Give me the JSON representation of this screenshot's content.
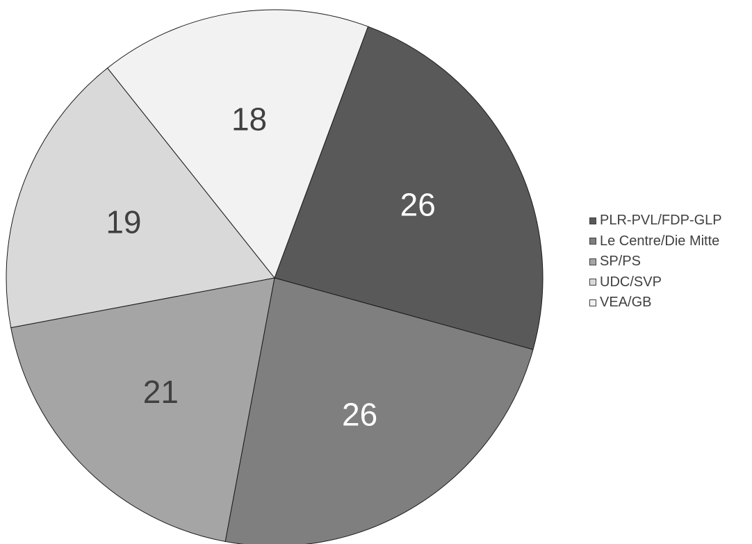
{
  "chart_data": {
    "type": "pie",
    "title": "",
    "slices": [
      {
        "name": "PLR-PVL/FDP-GLP",
        "value": 26,
        "color": "#595959",
        "label_color": "#ffffff"
      },
      {
        "name": "Le Centre/Die Mitte",
        "value": 26,
        "color": "#7f7f7f",
        "label_color": "#ffffff"
      },
      {
        "name": "SP/PS",
        "value": 21,
        "color": "#a5a5a5",
        "label_color": "#404040"
      },
      {
        "name": "UDC/SVP",
        "value": 19,
        "color": "#d9d9d9",
        "label_color": "#404040"
      },
      {
        "name": "VEA/GB",
        "value": 18,
        "color": "#f2f2f2",
        "label_color": "#404040"
      }
    ],
    "legend_position": "right",
    "start_angle_deg": 20.4,
    "direction": "clockwise"
  }
}
